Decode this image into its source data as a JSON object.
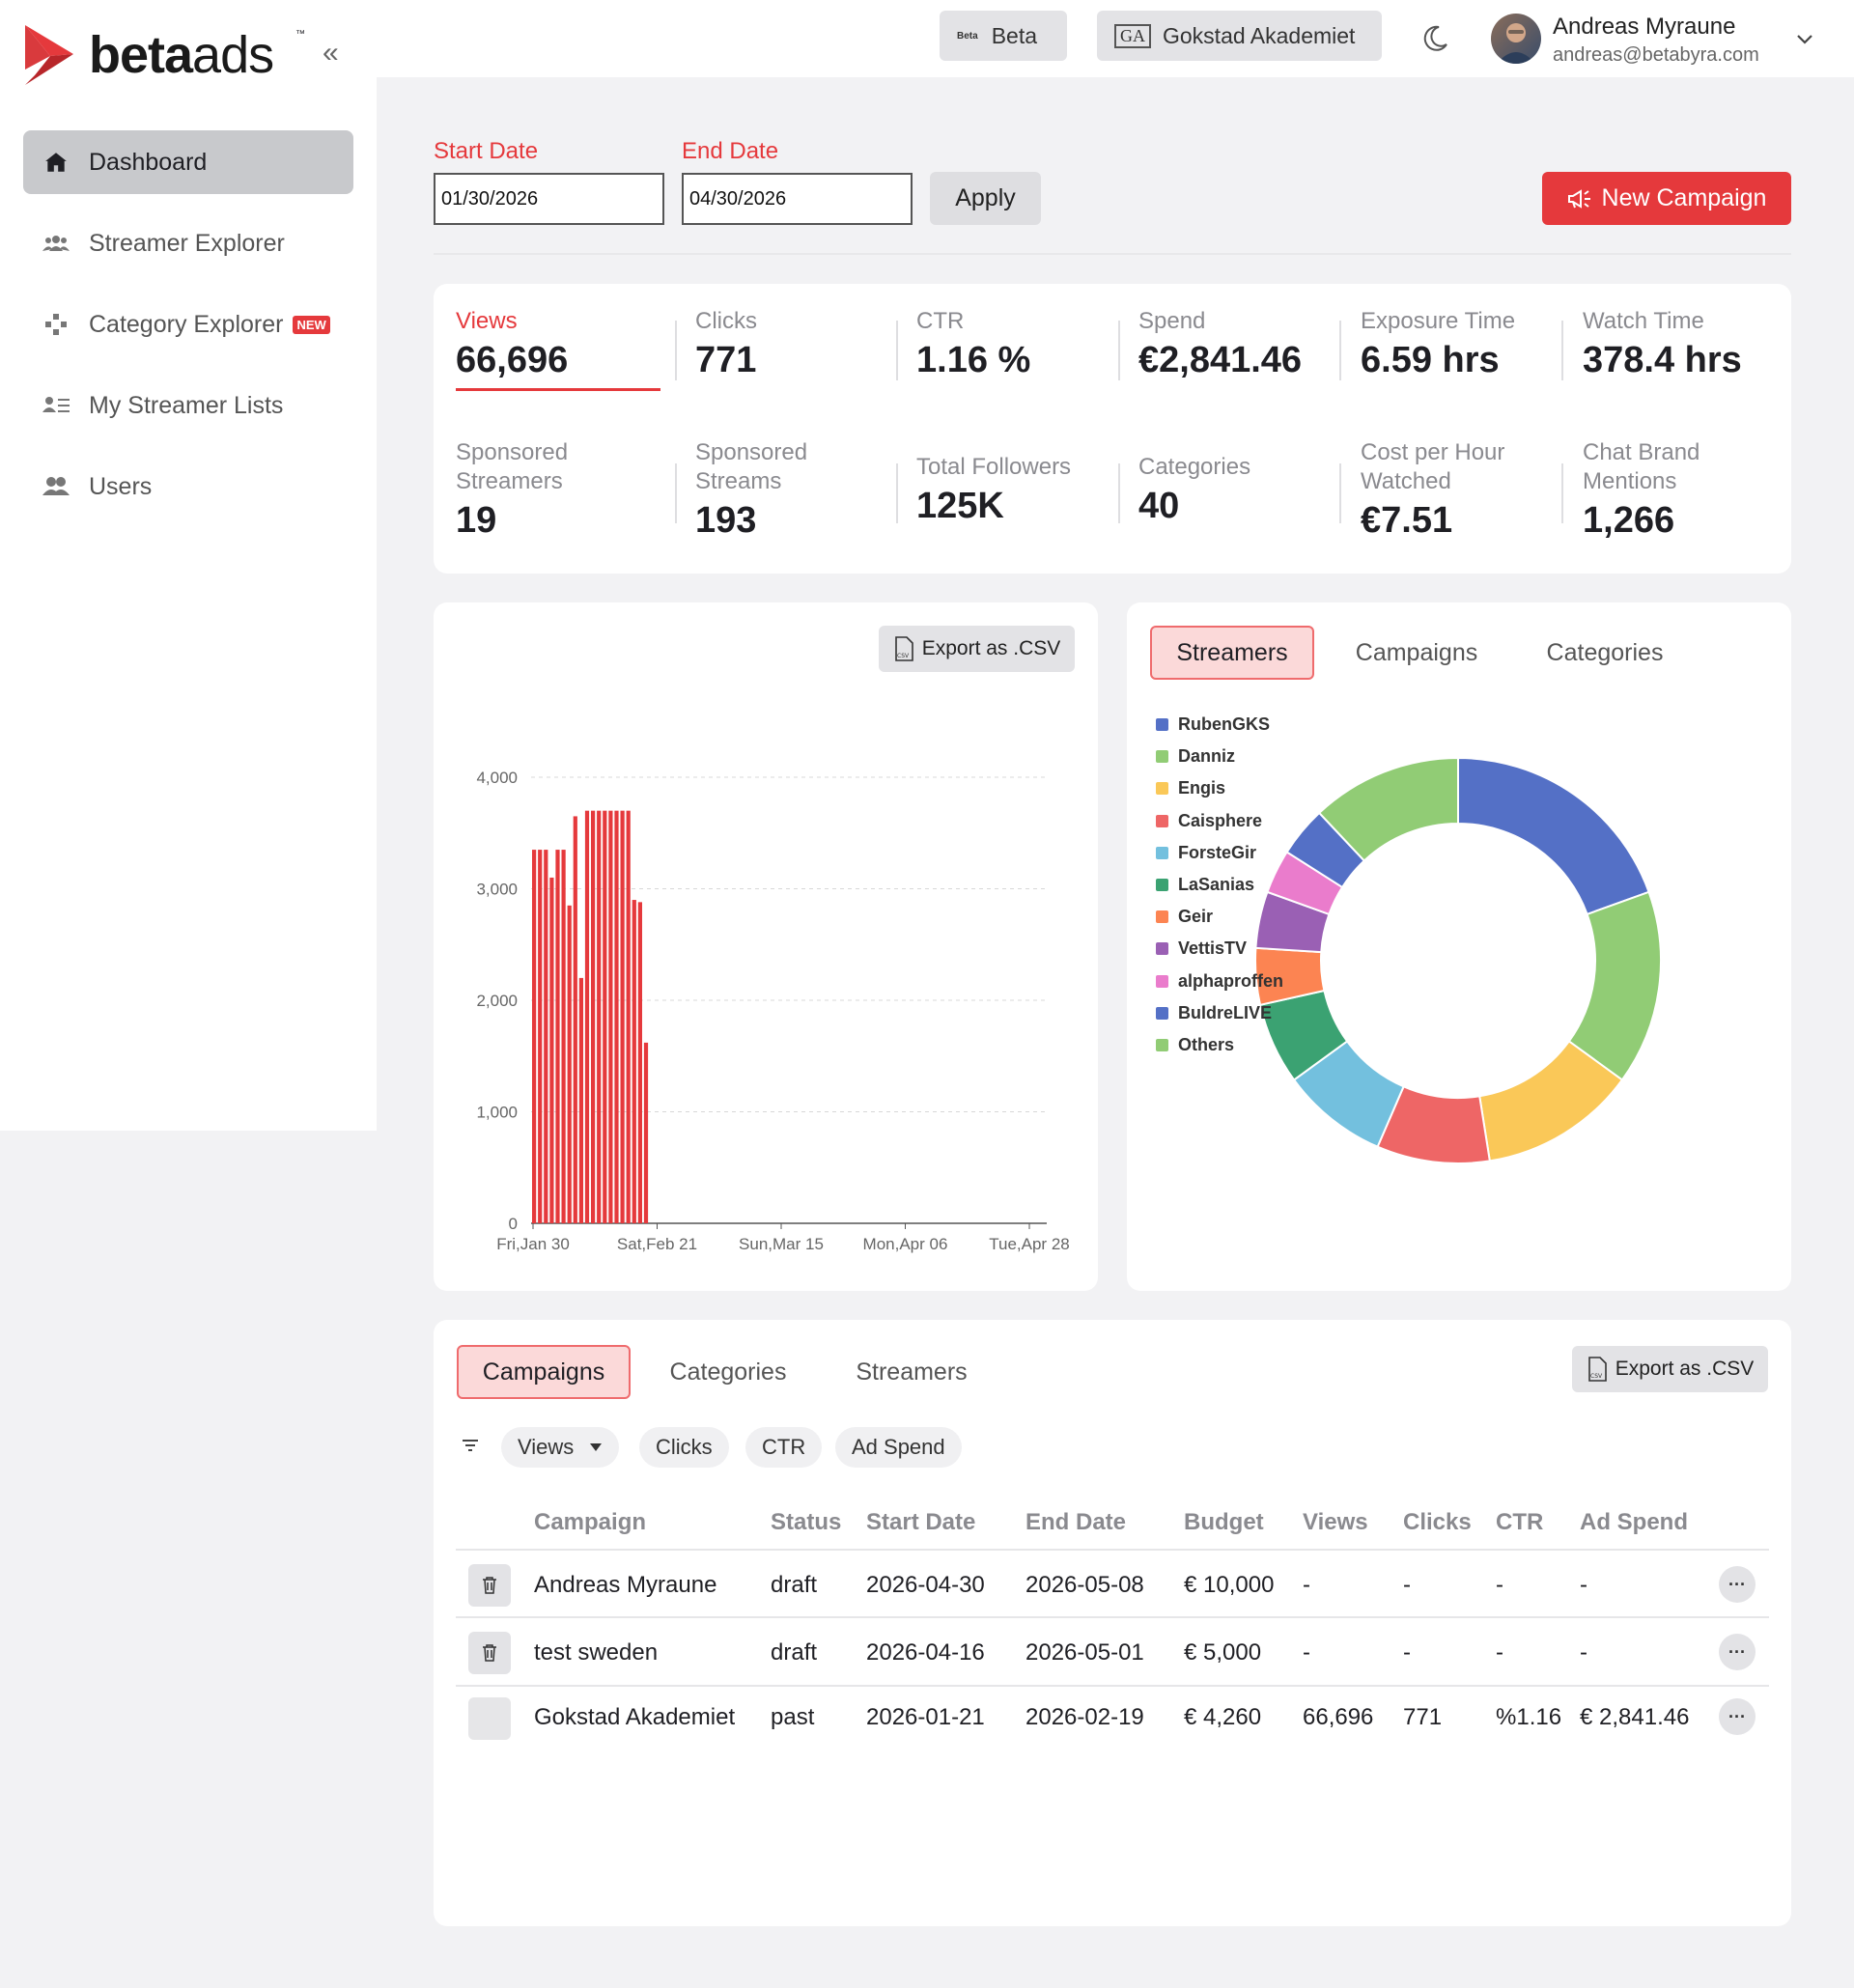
{
  "brand": {
    "name_bold": "beta",
    "name_light": "ads",
    "tm": "™"
  },
  "sidebar": {
    "collapse_icon": "«",
    "items": [
      {
        "label": "Dashboard",
        "icon": "home-icon",
        "active": true
      },
      {
        "label": "Streamer Explorer",
        "icon": "users-group-icon"
      },
      {
        "label": "Category Explorer",
        "icon": "gamepad-icon",
        "badge": "NEW"
      },
      {
        "label": "My Streamer Lists",
        "icon": "list-user-icon"
      },
      {
        "label": "Users",
        "icon": "users-icon"
      }
    ]
  },
  "topbar": {
    "beta_logo": "Beta",
    "beta_label": "Beta",
    "org_logo": "GA",
    "org_label": "Gokstad Akademiet",
    "user_name": "Andreas Myraune",
    "user_email": "andreas@betabyra.com"
  },
  "filters": {
    "start_label": "Start Date",
    "start_value": "01/30/2026",
    "end_label": "End Date",
    "end_value": "04/30/2026",
    "apply_label": "Apply",
    "new_campaign_label": "New Campaign"
  },
  "stats": [
    {
      "label": "Views",
      "value": "66,696",
      "active": true
    },
    {
      "label": "Clicks",
      "value": "771"
    },
    {
      "label": "CTR",
      "value": "1.16 %"
    },
    {
      "label": "Spend",
      "value": "€2,841.46"
    },
    {
      "label": "Exposure Time",
      "value": "6.59 hrs"
    },
    {
      "label": "Watch Time",
      "value": "378.4 hrs"
    },
    {
      "label": "Sponsored Streamers",
      "value": "19"
    },
    {
      "label": "Sponsored Streams",
      "value": "193"
    },
    {
      "label": "Total Followers",
      "value": "125K"
    },
    {
      "label": "Categories",
      "value": "40"
    },
    {
      "label": "Cost per Hour Watched",
      "value": "€7.51"
    },
    {
      "label": "Chat Brand Mentions",
      "value": "1,266"
    }
  ],
  "export_label": "Export as .CSV",
  "export_icon": "csv-file-icon",
  "chart_data": [
    {
      "type": "bar",
      "x": [
        0,
        1,
        2,
        3,
        4,
        5,
        6,
        7,
        8,
        9,
        10,
        11,
        12,
        13,
        14,
        15,
        16,
        17,
        18,
        19
      ],
      "values": [
        3350,
        3350,
        3350,
        3100,
        3350,
        3350,
        2850,
        3650,
        2200,
        3700,
        3700,
        3700,
        3700,
        3700,
        3700,
        3700,
        3700,
        2900,
        2880,
        1620
      ],
      "x_tick_labels": [
        "Fri,Jan 30",
        "Sat,Feb 21",
        "Sun,Mar 15",
        "Mon,Apr 06",
        "Tue,Apr 28"
      ],
      "y_ticks": [
        "0",
        "1,000",
        "2,000",
        "3,000",
        "4,000"
      ],
      "ylim": [
        0,
        4000
      ],
      "color": "#e5393c",
      "grid": true
    },
    {
      "type": "pie",
      "labels": [
        "RubenGKS",
        "Danniz",
        "Engis",
        "Caisphere",
        "ForsteGir",
        "LaSanias",
        "Geir",
        "VettisTV",
        "alphaproffen",
        "BuldreLIVE",
        "Others"
      ],
      "values": [
        19.5,
        15.5,
        12.5,
        9,
        8.5,
        6.5,
        4.5,
        4.5,
        3.5,
        4,
        12
      ],
      "colors": [
        "#5470c6",
        "#91cc75",
        "#fac858",
        "#ee6666",
        "#73c0de",
        "#3ba272",
        "#fc8452",
        "#9a60b4",
        "#ea7ccc",
        "#5470c6",
        "#91cc75"
      ],
      "legend": "left"
    }
  ],
  "pie_tabs": [
    "Streamers",
    "Campaigns",
    "Categories"
  ],
  "table_tabs": [
    "Campaigns",
    "Categories",
    "Streamers"
  ],
  "table_filters": [
    "Views",
    "Clicks",
    "CTR",
    "Ad Spend"
  ],
  "table": {
    "columns": [
      "Campaign",
      "Status",
      "Start Date",
      "End Date",
      "Budget",
      "Views",
      "Clicks",
      "CTR",
      "Ad Spend"
    ],
    "rows": [
      [
        "Andreas Myraune",
        "draft",
        "2026-04-30",
        "2026-05-08",
        "€ 10,000",
        "-",
        "-",
        "-",
        "-"
      ],
      [
        "test sweden",
        "draft",
        "2026-04-16",
        "2026-05-01",
        "€ 5,000",
        "-",
        "-",
        "-",
        "-"
      ],
      [
        "Gokstad Akademiet",
        "past",
        "2026-01-21",
        "2026-02-19",
        "€ 4,260",
        "66,696",
        "771",
        "%1.16",
        "€ 2,841.46"
      ]
    ],
    "more_label": "···"
  }
}
